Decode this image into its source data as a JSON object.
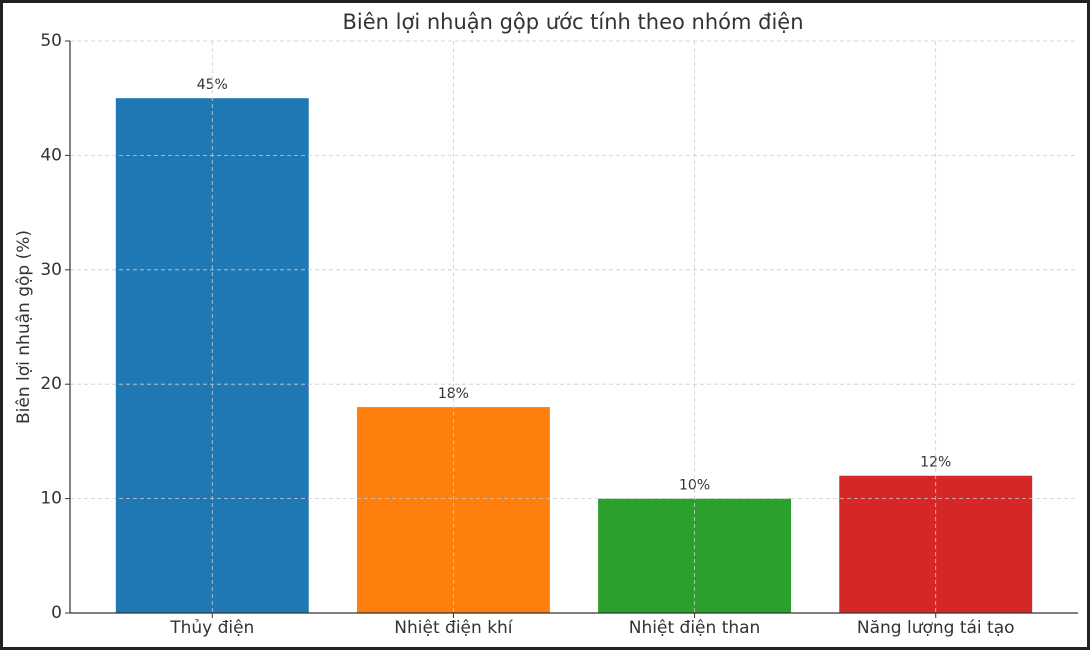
{
  "chart_data": {
    "type": "bar",
    "title": "Biên lợi nhuận gộp ước tính theo nhóm điện",
    "y_label": "Biên lợi nhuận gộp (%)",
    "categories": [
      "Thủy điện",
      "Nhiệt điện khí",
      "Nhiệt điện than",
      "Năng lượng tái tạo"
    ],
    "values": [
      45,
      18,
      10,
      12
    ],
    "value_labels": [
      "45%",
      "18%",
      "10%",
      "12%"
    ],
    "colors": [
      "#1f77b4",
      "#ff7f0e",
      "#2ca02c",
      "#d62728"
    ],
    "ylim": [
      0,
      50
    ],
    "yticks": [
      0,
      10,
      20,
      30,
      40,
      50
    ],
    "grid": true
  }
}
